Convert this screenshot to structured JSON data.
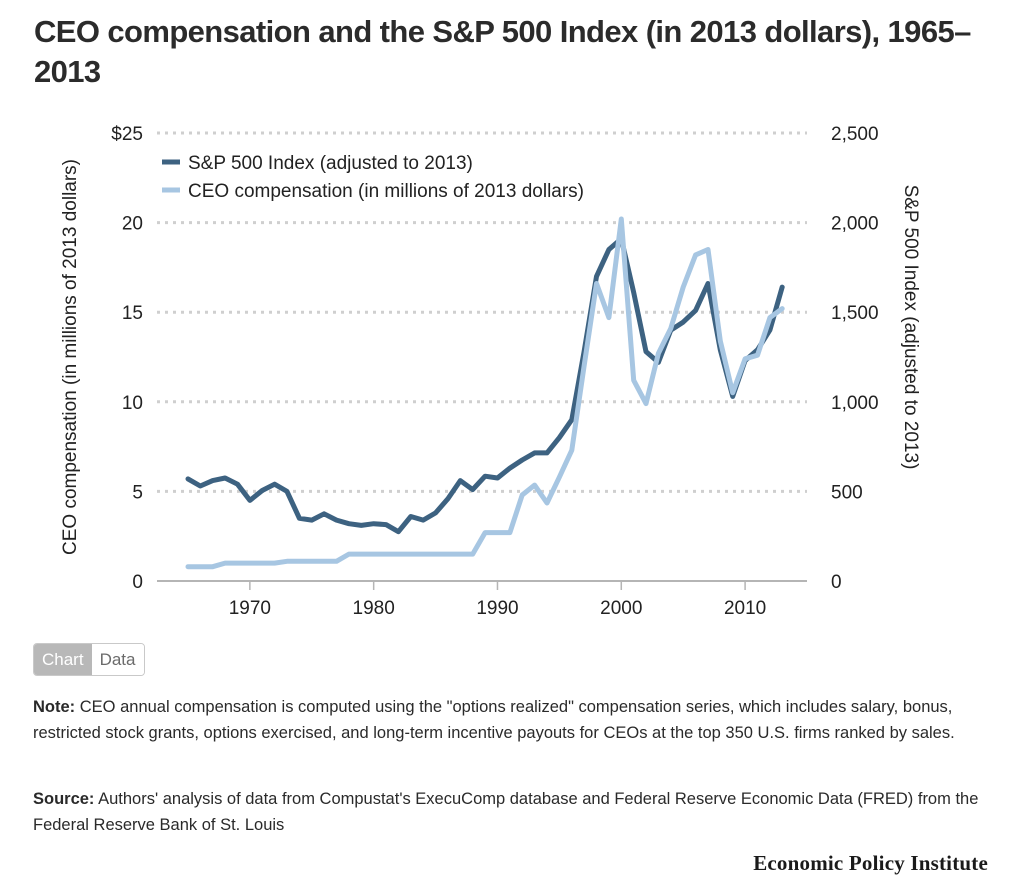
{
  "header": {
    "title": "CEO compensation and the S&P 500 Index (in 2013 dollars), 1965–2013"
  },
  "chart_data": {
    "type": "line",
    "title": "CEO compensation and the S&P 500 Index (in 2013 dollars), 1965–2013",
    "xlabel": "",
    "ylabel": "CEO compensation (in millions of 2013 dollars)",
    "y2label": "S&P 500 Index (adjusted to 2013)",
    "xlim": [
      1962.5,
      2015
    ],
    "ylim": [
      0,
      25
    ],
    "y2lim": [
      0,
      2500
    ],
    "x_ticks": [
      1970,
      1980,
      1990,
      2000,
      2010
    ],
    "x_tick_labels": [
      "1970",
      "1980",
      "1990",
      "2000",
      "2010"
    ],
    "y_ticks": [
      0,
      5,
      10,
      15,
      20,
      25
    ],
    "y_tick_labels": [
      "0",
      "5",
      "10",
      "15",
      "20",
      "$25"
    ],
    "y2_ticks": [
      0,
      500,
      1000,
      1500,
      2000,
      2500
    ],
    "y2_tick_labels": [
      "0",
      "500",
      "1,000",
      "1,500",
      "2,000",
      "2,500"
    ],
    "grid": true,
    "legend_position": "top-left",
    "x": [
      1965,
      1966,
      1967,
      1968,
      1969,
      1970,
      1971,
      1972,
      1973,
      1974,
      1975,
      1976,
      1977,
      1978,
      1979,
      1980,
      1981,
      1982,
      1983,
      1984,
      1985,
      1986,
      1987,
      1988,
      1989,
      1990,
      1991,
      1992,
      1993,
      1994,
      1995,
      1996,
      1997,
      1998,
      1999,
      2000,
      2001,
      2002,
      2003,
      2004,
      2005,
      2006,
      2007,
      2008,
      2009,
      2010,
      2011,
      2012,
      2013
    ],
    "series": [
      {
        "name": "S&P 500 Index (adjusted to 2013)",
        "axis": "right",
        "color": "#3d6281",
        "values": [
          570,
          530,
          560,
          575,
          540,
          450,
          505,
          540,
          500,
          350,
          340,
          375,
          340,
          320,
          310,
          320,
          315,
          275,
          360,
          340,
          380,
          460,
          560,
          510,
          585,
          575,
          630,
          675,
          715,
          715,
          800,
          900,
          1280,
          1700,
          1850,
          1910,
          1610,
          1280,
          1220,
          1400,
          1445,
          1510,
          1660,
          1290,
          1030,
          1230,
          1290,
          1400,
          1640
        ]
      },
      {
        "name": "CEO compensation (in millions of 2013 dollars)",
        "axis": "left",
        "color": "#a7c6e2",
        "values": [
          0.8,
          0.8,
          0.8,
          1.0,
          1.0,
          1.0,
          1.0,
          1.0,
          1.1,
          1.1,
          1.1,
          1.1,
          1.1,
          1.5,
          1.5,
          1.5,
          1.5,
          1.5,
          1.5,
          1.5,
          1.5,
          1.5,
          1.5,
          1.5,
          2.7,
          2.7,
          2.7,
          4.8,
          5.35,
          4.35,
          5.8,
          7.3,
          12.0,
          16.6,
          14.7,
          20.2,
          11.2,
          9.9,
          12.7,
          14.1,
          16.4,
          18.2,
          18.5,
          13.4,
          10.5,
          12.4,
          12.6,
          14.7,
          15.2
        ]
      }
    ]
  },
  "legend": {
    "items": [
      {
        "label": "S&P 500 Index (adjusted to 2013)",
        "color": "#3d6281"
      },
      {
        "label": "CEO compensation (in millions of 2013 dollars)",
        "color": "#a7c6e2"
      }
    ]
  },
  "toggle": {
    "chart_label": "Chart",
    "data_label": "Data"
  },
  "footer": {
    "note_label": "Note:",
    "note_text": " CEO annual compensation is computed using the \"options realized\" compensation series, which in­cludes salary, bonus, restricted stock grants, options exercised, and long-term incentive payouts for CEOs at the top 350 U.S. firms ranked by sales.",
    "source_label": "Source:",
    "source_text": " Authors' analysis of data from Compustat's ExecuComp database and Federal Reserve Economic Data (FRED) from the Federal Reserve Bank of St. Louis",
    "brand": "Economic Policy Institute"
  }
}
